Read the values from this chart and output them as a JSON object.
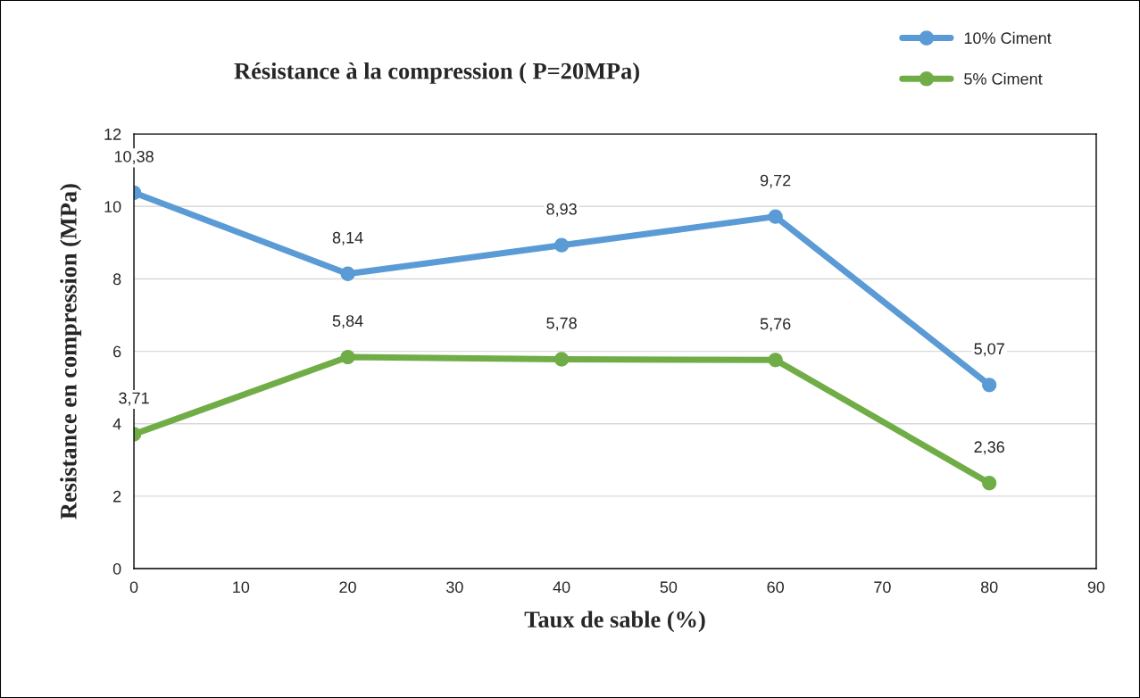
{
  "chart_data": {
    "type": "line",
    "title": "Résistance à la compression ( P=20MPa)",
    "xlabel": "Taux de sable (%)",
    "ylabel": "Resistance en compression (MPa)",
    "x": [
      0,
      20,
      40,
      60,
      80
    ],
    "series": [
      {
        "name": "10% Ciment",
        "color": "#5b9bd5",
        "values": [
          10.38,
          8.14,
          8.93,
          9.72,
          5.07
        ],
        "value_labels": [
          "10,38",
          "8,14",
          "8,93",
          "9,72",
          "5,07"
        ]
      },
      {
        "name": "5% Ciment",
        "color": "#70ad47",
        "values": [
          3.71,
          5.84,
          5.78,
          5.76,
          2.36
        ],
        "value_labels": [
          "3,71",
          "5,84",
          "5,78",
          "5,76",
          "2,36"
        ]
      }
    ],
    "xlim": [
      0,
      90
    ],
    "xticks": [
      0,
      10,
      20,
      30,
      40,
      50,
      60,
      70,
      80,
      90
    ],
    "ylim": [
      0,
      12
    ],
    "yticks": [
      0,
      2,
      4,
      6,
      8,
      10,
      12
    ],
    "grid": "y",
    "legend": "top right",
    "marker": "circle",
    "line_style": "solid"
  }
}
